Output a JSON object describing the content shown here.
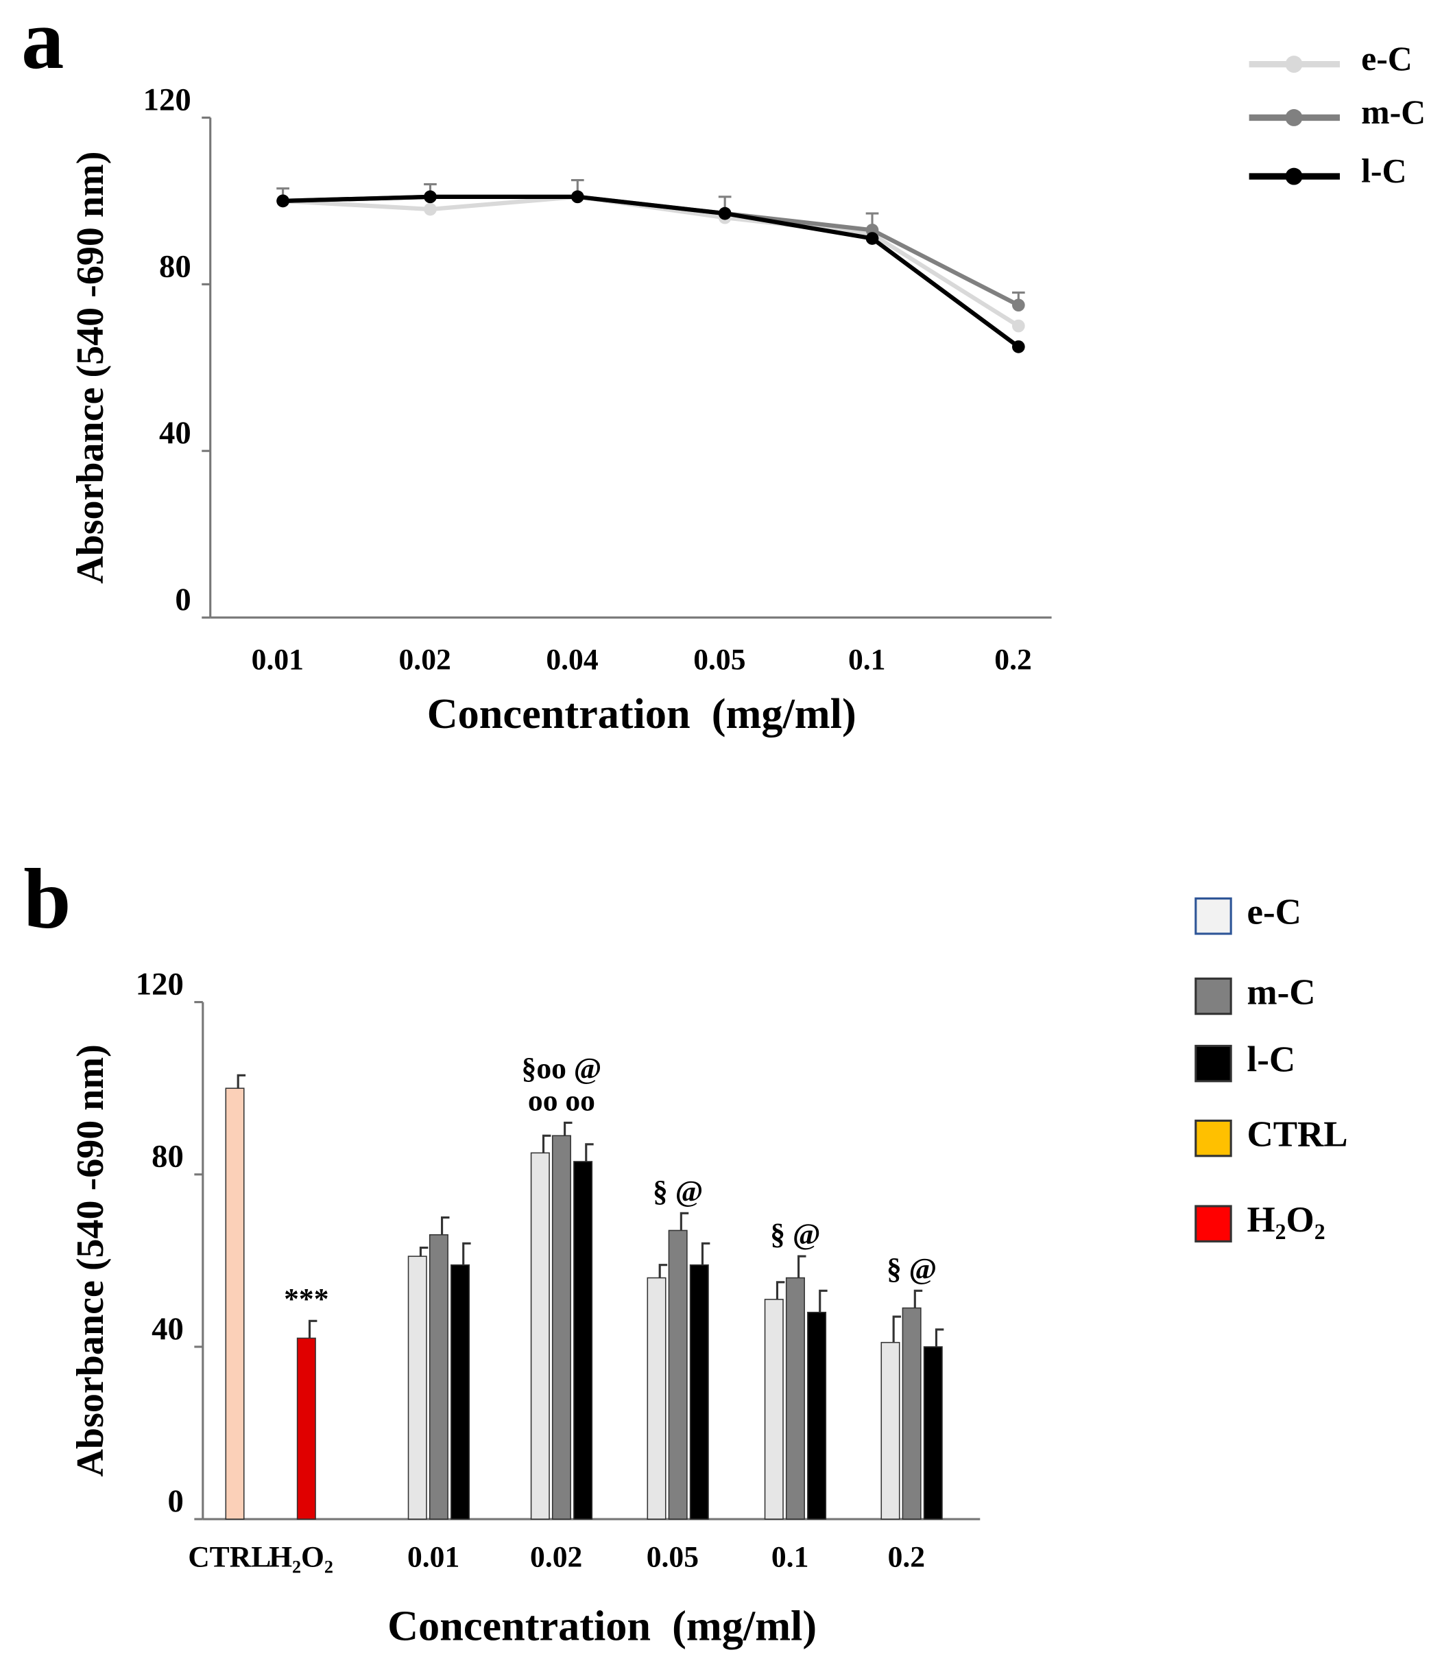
{
  "chart_data": [
    {
      "type": "line",
      "panel": "a",
      "x_label": "Concentration  (mg/ml)",
      "y_label": "Absorbance (540 -690 nm)",
      "categories": [
        "0.01",
        "0.02",
        "0.04",
        "0.05",
        "0.1",
        "0.2"
      ],
      "ylim": [
        0,
        120
      ],
      "yticks": [
        0,
        40,
        80,
        120
      ],
      "series": [
        {
          "name": "e-C",
          "color": "#d9d9d9",
          "values": [
            100,
            98,
            101,
            96,
            92,
            70
          ]
        },
        {
          "name": "m-C",
          "color": "#808080",
          "values": [
            100,
            101,
            101,
            97,
            93,
            75
          ],
          "errors": [
            3,
            3,
            4,
            4,
            4,
            3
          ]
        },
        {
          "name": "l-C",
          "color": "#000000",
          "values": [
            100,
            101,
            101,
            97,
            91,
            65
          ]
        }
      ]
    },
    {
      "type": "bar",
      "panel": "b",
      "x_label": "Concentration  (mg/ml)",
      "y_label": "Absorbance (540 -690 nm)",
      "categories": [
        "CTRL",
        "H₂O₂",
        "0.01",
        "0.02",
        "0.05",
        "0.1",
        "0.2"
      ],
      "ylim": [
        0,
        120
      ],
      "yticks": [
        0,
        40,
        80,
        120
      ],
      "series": [
        {
          "name": "e-C",
          "color": "#e6e6e6",
          "legend_color": "#f2f2f2",
          "values": [
            null,
            null,
            61,
            85,
            56,
            51,
            41
          ],
          "errors": [
            null,
            null,
            2,
            4,
            3,
            4,
            6
          ]
        },
        {
          "name": "m-C",
          "color": "#808080",
          "legend_color": "#808080",
          "values": [
            null,
            null,
            66,
            89,
            67,
            56,
            49
          ],
          "errors": [
            null,
            null,
            4,
            3,
            4,
            5,
            4
          ]
        },
        {
          "name": "l-C",
          "color": "#000000",
          "legend_color": "#000000",
          "values": [
            null,
            null,
            59,
            83,
            59,
            48,
            40
          ],
          "errors": [
            null,
            null,
            5,
            4,
            5,
            5,
            4
          ]
        },
        {
          "name": "CTRL",
          "color": "#fbd0b8",
          "legend_color": "#ffc000",
          "values": [
            100,
            null,
            null,
            null,
            null,
            null,
            null
          ],
          "errors": [
            3,
            null,
            null,
            null,
            null,
            null,
            null
          ]
        },
        {
          "name": "H₂O₂",
          "color": "#e00000",
          "legend_color": "#ff0000",
          "values": [
            null,
            42,
            null,
            null,
            null,
            null,
            null
          ],
          "errors": [
            null,
            4,
            null,
            null,
            null,
            null,
            null
          ]
        }
      ],
      "annotations": [
        {
          "text": "***",
          "category": "H₂O₂"
        },
        {
          "text": "§oo @",
          "category": "0.02"
        },
        {
          "text": "oo  oo",
          "category": "0.02"
        },
        {
          "text": "§   @",
          "category": "0.05"
        },
        {
          "text": "§   @",
          "category": "0.1"
        },
        {
          "text": "§   @",
          "category": "0.2"
        }
      ]
    }
  ]
}
